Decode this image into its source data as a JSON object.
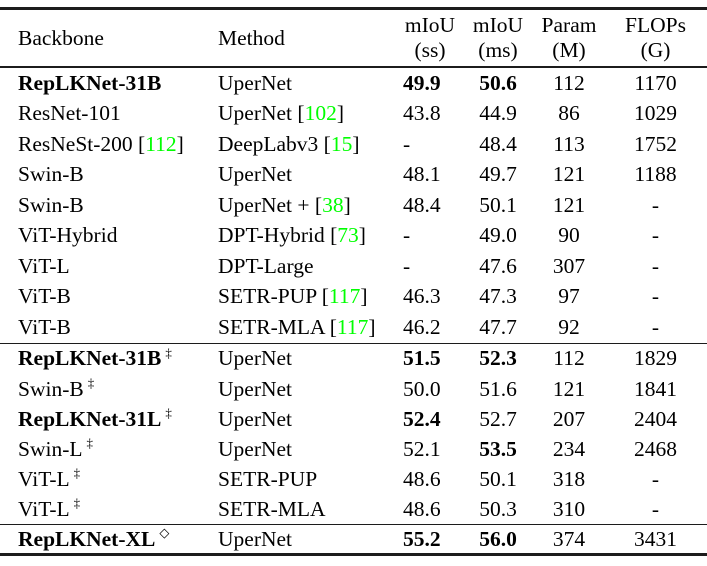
{
  "colors": {
    "background": "#ffffff",
    "text": "#000000",
    "citation_green": "#00ff00",
    "rule": "#1c1c1c"
  },
  "table": {
    "headers": {
      "backbone": "Backbone",
      "method": "Method",
      "miou_ss": {
        "line1": "mIoU",
        "line2": "(ss)"
      },
      "miou_ms": {
        "line1": "mIoU",
        "line2": "(ms)"
      },
      "param": {
        "line1": "Param",
        "line2": "(M)"
      },
      "flops": {
        "line1": "FLOPs",
        "line2": "(G)"
      }
    },
    "rows": [
      {
        "backbone": "RepLKNet-31B",
        "backbone_bold": true,
        "method": "UperNet",
        "miou_ss": "49.9",
        "miou_ss_bold": true,
        "miou_ms": "50.6",
        "miou_ms_bold": true,
        "param": "112",
        "flops": "1170"
      },
      {
        "backbone": "ResNet-101",
        "method": "UperNet",
        "method_ref": "102",
        "miou_ss": "43.8",
        "miou_ms": "44.9",
        "param": "86",
        "flops": "1029"
      },
      {
        "backbone": "ResNeSt-200",
        "backbone_ref": "112",
        "method": "DeepLabv3",
        "method_ref": "15",
        "miou_ss": "-",
        "miou_ms": "48.4",
        "param": "113",
        "flops": "1752"
      },
      {
        "backbone": "Swin-B",
        "method": "UperNet",
        "miou_ss": "48.1",
        "miou_ms": "49.7",
        "param": "121",
        "flops": "1188"
      },
      {
        "backbone": "Swin-B",
        "method": "UperNet +",
        "method_ref": "38",
        "miou_ss": "48.4",
        "miou_ms": "50.1",
        "param": "121",
        "flops": "-"
      },
      {
        "backbone": "ViT-Hybrid",
        "method": "DPT-Hybrid",
        "method_ref": "73",
        "miou_ss": "-",
        "miou_ms": "49.0",
        "param": "90",
        "flops": "-"
      },
      {
        "backbone": "ViT-L",
        "method": "DPT-Large",
        "miou_ss": "-",
        "miou_ms": "47.6",
        "param": "307",
        "flops": "-"
      },
      {
        "backbone": "ViT-B",
        "method": "SETR-PUP",
        "method_ref": "117",
        "miou_ss": "46.3",
        "miou_ms": "47.3",
        "param": "97",
        "flops": "-"
      },
      {
        "backbone": "ViT-B",
        "method": "SETR-MLA",
        "method_ref": "117",
        "miou_ss": "46.2",
        "miou_ms": "47.7",
        "param": "92",
        "flops": "-"
      },
      {
        "backbone": "RepLKNet-31B",
        "backbone_bold": true,
        "backbone_sup": "‡",
        "method": "UperNet",
        "miou_ss": "51.5",
        "miou_ss_bold": true,
        "miou_ms": "52.3",
        "miou_ms_bold": true,
        "param": "112",
        "flops": "1829",
        "section_start": true
      },
      {
        "backbone": "Swin-B",
        "backbone_sup": "‡",
        "method": "UperNet",
        "miou_ss": "50.0",
        "miou_ms": "51.6",
        "param": "121",
        "flops": "1841",
        "sec2": true
      },
      {
        "backbone": "RepLKNet-31L",
        "backbone_bold": true,
        "backbone_sup": "‡",
        "method": "UperNet",
        "miou_ss": "52.4",
        "miou_ss_bold": true,
        "miou_ms": "52.7",
        "param": "207",
        "flops": "2404",
        "sec2": true
      },
      {
        "backbone": "Swin-L",
        "backbone_sup": "‡",
        "method": "UperNet",
        "miou_ss": "52.1",
        "miou_ms": "53.5",
        "miou_ms_bold": true,
        "param": "234",
        "flops": "2468",
        "sec2": true
      },
      {
        "backbone": "ViT-L",
        "backbone_sup": "‡",
        "method": "SETR-PUP",
        "miou_ss": "48.6",
        "miou_ms": "50.1",
        "param": "318",
        "flops": "-",
        "sec2": true
      },
      {
        "backbone": "ViT-L",
        "backbone_sup": "‡",
        "method": "SETR-MLA",
        "miou_ss": "48.6",
        "miou_ms": "50.3",
        "param": "310",
        "flops": "-",
        "sec2": true
      },
      {
        "backbone": "RepLKNet-XL",
        "backbone_bold": true,
        "backbone_sup": "◇",
        "method": "UperNet",
        "miou_ss": "55.2",
        "miou_ss_bold": true,
        "miou_ms": "56.0",
        "miou_ms_bold": true,
        "param": "374",
        "flops": "3431",
        "section_start": true,
        "final": true
      }
    ]
  }
}
